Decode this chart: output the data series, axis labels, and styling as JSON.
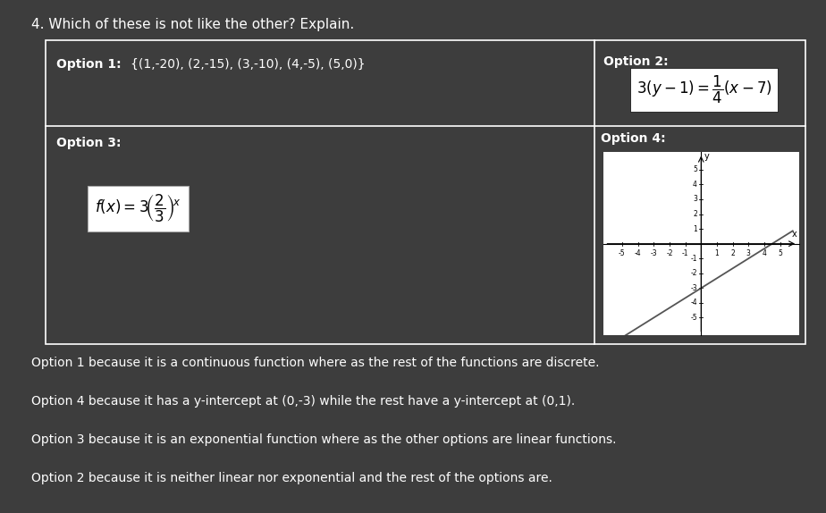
{
  "title": "4. Which of these is not like the other? Explain.",
  "option1_label": "Option 1: {(1,-20), (2,-15), (3,-10), (4,-5), (5,0)}",
  "option2_label": "Option 2:",
  "option3_label": "Option 3:",
  "option4_label": "Option 4:",
  "answer1": "Option 1 because it is a continuous function where as the rest of the functions are discrete.",
  "answer2": "Option 4 because it has a y-intercept at (0,-3) while the rest have a y-intercept at (0,1).",
  "answer3": "Option 3 because it is an exponential function where as the other options are linear functions.",
  "answer4": "Option 2 because it is neither linear nor exponential and the rest of the options are.",
  "bg_color": "#3d3d3d",
  "white": "#ffffff",
  "black": "#000000",
  "panel_border": "#ffffff",
  "line_color": "#808080",
  "formula2_bg": "#ffffff",
  "formula3_bg": "#ffffff"
}
